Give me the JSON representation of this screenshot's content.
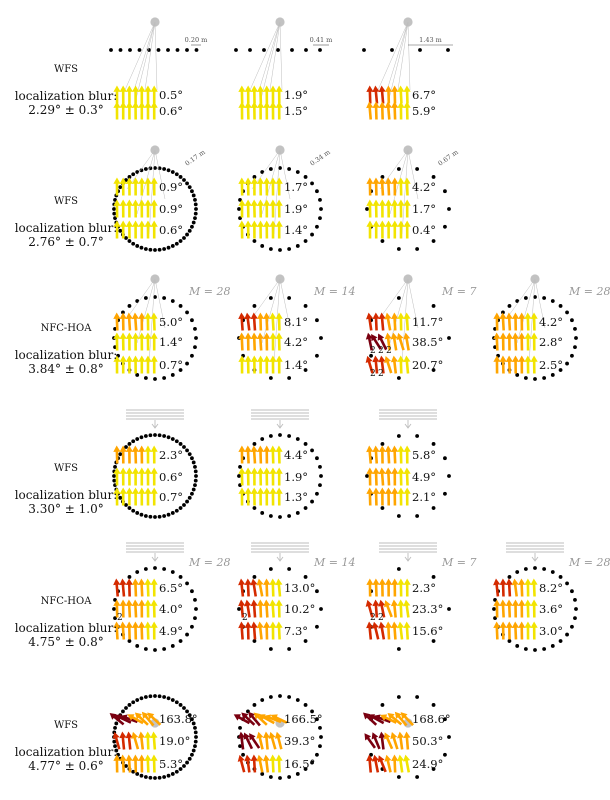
{
  "colors": {
    "speaker": "#000000",
    "listener": "#c2c2c2",
    "rays": "#bdbdbd",
    "plane_wave": "#bdbdbd",
    "m_label": "#9a9a9a",
    "arrow_small": "#f2e400",
    "arrow_mid": "#ffa500",
    "arrow_large": "#d42a00",
    "arrow_huge": "#7a0010"
  },
  "rows": [
    {
      "method": "WFS",
      "blur": "localization blur:",
      "blur_value": "2.29° ± 0.3°",
      "panels": [
        {
          "scale": "0.20 m",
          "values": [
            "0.5°",
            "0.6°"
          ]
        },
        {
          "scale": "0.41 m",
          "values": [
            "1.9°",
            "1.5°"
          ]
        },
        {
          "scale": "1.43 m",
          "values": [
            "6.7°",
            "5.9°"
          ]
        }
      ]
    },
    {
      "method": "WFS",
      "blur": "localization blur:",
      "blur_value": "2.76° ± 0.7°",
      "panels": [
        {
          "scale": "0.17 m",
          "values": [
            "0.9°",
            "0.9°",
            "0.6°"
          ]
        },
        {
          "scale": "0.34 m",
          "values": [
            "1.7°",
            "1.9°",
            "1.4°"
          ]
        },
        {
          "scale": "0.67 m",
          "values": [
            "4.2°",
            "1.7°",
            "0.4°"
          ]
        }
      ]
    },
    {
      "method": "NFC-HOA",
      "blur": "localization blur:",
      "blur_value": "3.84° ± 0.8°",
      "panels": [
        {
          "m": "M = 28",
          "values": [
            "5.0°",
            "1.4°",
            "0.7°"
          ]
        },
        {
          "m": "M = 14",
          "values": [
            "8.1°",
            "4.2°",
            "1.4°"
          ]
        },
        {
          "m": "M = 7",
          "values": [
            "11.7°",
            "38.5°",
            "20.7°"
          ],
          "subscripts": [
            "2",
            "2",
            "2",
            "2",
            "2"
          ]
        },
        {
          "m": "M = 28",
          "values": [
            "4.2°",
            "2.8°",
            "2.5°"
          ]
        }
      ]
    },
    {
      "method": "WFS",
      "blur": "localization blur:",
      "blur_value": "3.30° ± 1.0°",
      "panels": [
        {
          "values": [
            "2.3°",
            "0.6°",
            "0.7°"
          ]
        },
        {
          "values": [
            "4.4°",
            "1.9°",
            "1.3°"
          ]
        },
        {
          "values": [
            "5.8°",
            "4.9°",
            "2.1°"
          ]
        }
      ]
    },
    {
      "method": "NFC-HOA",
      "blur": "localization blur:",
      "blur_value": "4.75° ± 0.8°",
      "panels": [
        {
          "m": "M = 28",
          "values": [
            "6.5°",
            "4.0°",
            "4.9°"
          ],
          "subscripts": [
            "2"
          ]
        },
        {
          "m": "M = 14",
          "values": [
            "13.0°",
            "10.2°",
            "7.3°"
          ],
          "subscripts": [
            "2"
          ]
        },
        {
          "m": "M = 7",
          "values": [
            "2.3°",
            "23.3°",
            "15.6°"
          ],
          "subscripts": [
            "2",
            "2"
          ]
        },
        {
          "m": "M = 28",
          "values": [
            "8.2°",
            "3.6°",
            "3.0°"
          ]
        }
      ]
    },
    {
      "method": "WFS",
      "blur": "localization blur:",
      "blur_value": "4.77° ± 0.6°",
      "panels": [
        {
          "values": [
            "163.8°",
            "19.0°",
            "5.3°"
          ]
        },
        {
          "values": [
            "166.5°",
            "39.3°",
            "16.5°"
          ]
        },
        {
          "values": [
            "168.6°",
            "50.3°",
            "24.9°"
          ]
        }
      ]
    }
  ]
}
